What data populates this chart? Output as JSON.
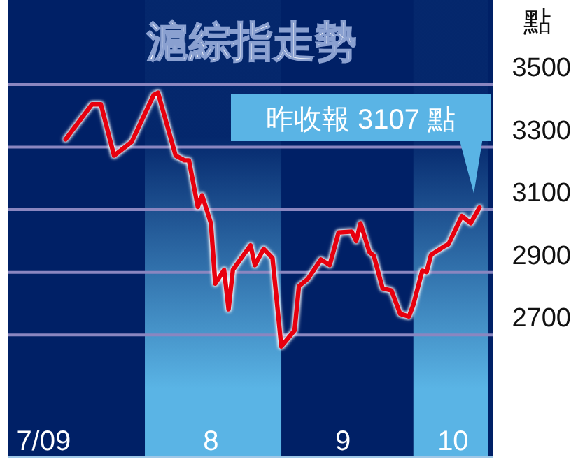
{
  "chart_data": {
    "type": "line",
    "title": "滬綜指走勢",
    "ylabel": "點",
    "annotations": [
      {
        "text": "昨收報 3107 點",
        "x": "--10-16",
        "y": 3107
      }
    ],
    "x": [
      "--07-14",
      "--07-20",
      "--07-22",
      "--07-25",
      "--07-29",
      "--08-03",
      "--08-04",
      "--08-05",
      "--08-08",
      "--08-10",
      "--08-11",
      "--08-13",
      "--08-14",
      "--08-16",
      "--08-17",
      "--08-19",
      "--08-20",
      "--08-21",
      "--08-25",
      "--08-26",
      "--08-28",
      "--08-30",
      "--09-01",
      "--09-04",
      "--09-05",
      "--09-07",
      "--09-10",
      "--09-12",
      "--09-14",
      "--09-17",
      "--09-18",
      "--09-19",
      "--09-21",
      "--09-22",
      "--09-24",
      "--09-26",
      "--09-28",
      "--09-30",
      "--10-01",
      "--10-03",
      "--10-04",
      "--10-05",
      "--10-08",
      "--10-09",
      "--10-12",
      "--10-14",
      "--10-16"
    ],
    "series": [
      {
        "color": "#e8000e",
        "values": [
          3325,
          3437,
          3437,
          3273,
          3317,
          3467,
          3474,
          3422,
          3273,
          3258,
          3258,
          3109,
          3146,
          3057,
          2864,
          2908,
          2782,
          2908,
          2986,
          2923,
          2975,
          2946,
          2663,
          2715,
          2856,
          2879,
          2941,
          2923,
          3027,
          3030,
          3000,
          3057,
          2965,
          2953,
          2849,
          2842,
          2767,
          2759,
          2797,
          2905,
          2901,
          2956,
          2983,
          2990,
          3080,
          3057,
          3107
        ]
      }
    ],
    "xlim": [
      "--07-01",
      "--10-19"
    ],
    "ylim": [
      2310,
      3770
    ],
    "xticks": [
      {
        "value": "--07-09",
        "label": "7/09"
      },
      {
        "value": "--08-16",
        "label": "8"
      },
      {
        "value": "--09-15",
        "label": "9"
      },
      {
        "value": "--10-10",
        "label": "10"
      }
    ],
    "yticks": [
      2700,
      2900,
      3100,
      3300,
      3500
    ],
    "bands": [
      {
        "axis": "x",
        "from": "--08-01",
        "to": "--09-01",
        "color": "#5ab4e5"
      },
      {
        "axis": "x",
        "from": "--10-01",
        "to": "--10-18",
        "color": "#5ab4e5"
      }
    ],
    "grid": "y"
  }
}
